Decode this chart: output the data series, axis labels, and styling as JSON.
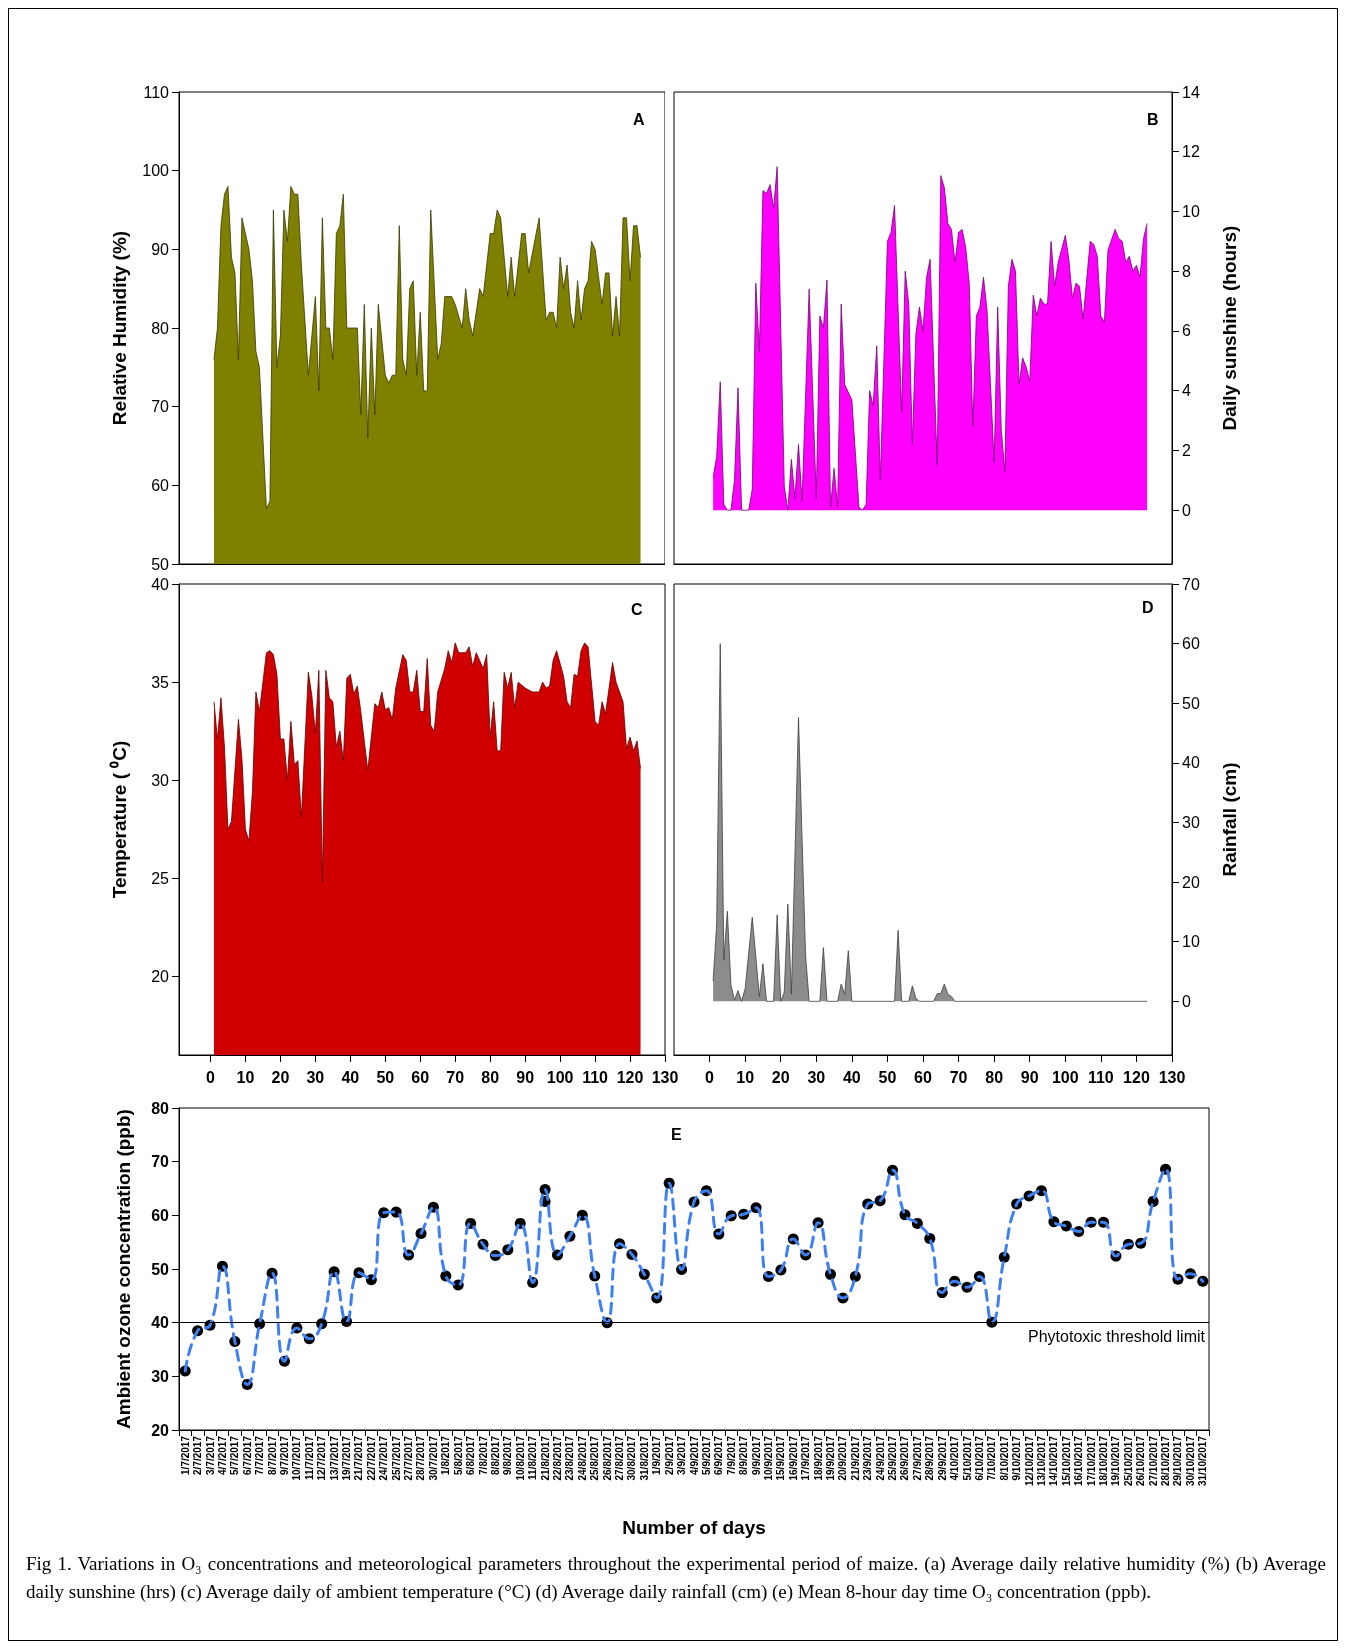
{
  "chart_data": [
    {
      "type": "area",
      "title": "A",
      "ylabel": "Relative Humidity (%)",
      "xlim": [
        -9,
        130
      ],
      "xticks": [
        0,
        10,
        20,
        30,
        40,
        50,
        60,
        70,
        80,
        90,
        100,
        110,
        120,
        130
      ],
      "ylim": [
        50,
        110
      ],
      "yticks": [
        50,
        60,
        70,
        80,
        90,
        100,
        110
      ],
      "tick_labels": "y",
      "x": [
        1,
        2,
        3,
        4,
        5,
        6,
        7,
        8,
        9,
        11,
        12,
        13,
        14,
        16,
        17,
        18,
        19,
        20,
        21,
        22,
        23,
        24,
        25,
        26,
        28,
        30,
        31,
        32,
        33,
        34,
        35,
        36,
        37,
        38,
        39,
        42,
        43,
        44,
        45,
        46,
        47,
        48,
        50,
        51,
        52,
        53,
        54,
        55,
        56,
        57,
        58,
        59,
        60,
        61,
        62,
        63,
        65,
        66,
        67,
        69,
        70,
        72,
        73,
        74,
        75,
        77,
        78,
        80,
        81,
        82,
        83,
        85,
        86,
        87,
        89,
        90,
        91,
        94,
        96,
        97,
        98,
        99,
        100,
        101,
        102,
        103,
        104,
        105,
        106,
        107,
        108,
        109,
        110,
        112,
        113,
        114,
        115,
        116,
        117,
        118,
        119,
        120,
        121,
        122,
        123
      ],
      "series": [
        {
          "color": "#7f7f00",
          "values": [
            76,
            80,
            93,
            97,
            98,
            89,
            87,
            76,
            94,
            90,
            86,
            77,
            75,
            57,
            58,
            95,
            75,
            79,
            95,
            91,
            98,
            97,
            97,
            88,
            74,
            84,
            72,
            94,
            80,
            80,
            76,
            92,
            93,
            97,
            80,
            80,
            69,
            83,
            66,
            80,
            69,
            83,
            74,
            73,
            74,
            74,
            93,
            76,
            74,
            85,
            86,
            74,
            82,
            72,
            72,
            95,
            76,
            78,
            84,
            84,
            83,
            80,
            85,
            81,
            79,
            85,
            84,
            92,
            92,
            95,
            94,
            84,
            89,
            84,
            92,
            92,
            87,
            94,
            81,
            82,
            82,
            80,
            89,
            85,
            88,
            82,
            80,
            86,
            81,
            85,
            86,
            91,
            90,
            83,
            87,
            87,
            79,
            84,
            79,
            94,
            94,
            86,
            93,
            93,
            89
          ]
        }
      ]
    },
    {
      "type": "area",
      "title": "B",
      "y2label": "Daily sunshine (hours)",
      "xlim": [
        -10,
        130
      ],
      "xticks": [
        0,
        10,
        20,
        30,
        40,
        50,
        60,
        70,
        80,
        90,
        100,
        110,
        120,
        130
      ],
      "y2lim": [
        -1.8,
        14
      ],
      "y2ticks": [
        0,
        2,
        4,
        6,
        8,
        10,
        12,
        14
      ],
      "tick_labels": "y",
      "x": [
        1,
        2,
        3,
        4,
        5,
        6,
        7,
        8,
        9,
        11,
        12,
        13,
        14,
        15,
        16,
        17,
        18,
        19,
        21,
        22,
        23,
        24,
        25,
        26,
        28,
        30,
        31,
        32,
        33,
        34,
        35,
        36,
        37,
        38,
        40,
        42,
        43,
        44,
        45,
        46,
        47,
        48,
        50,
        51,
        52,
        54,
        55,
        56,
        57,
        58,
        59,
        60,
        61,
        62,
        64,
        65,
        66,
        67,
        68,
        69,
        70,
        71,
        72,
        73,
        74,
        75,
        76,
        77,
        78,
        80,
        81,
        82,
        83,
        84,
        85,
        86,
        87,
        88,
        89,
        90,
        91,
        92,
        93,
        94,
        95,
        96,
        97,
        98,
        100,
        101,
        102,
        103,
        104,
        105,
        107,
        108,
        109,
        110,
        111,
        112,
        114,
        115,
        116,
        117,
        118,
        119,
        120,
        121,
        122,
        123
      ],
      "series": [
        {
          "color": "#ff00ff",
          "axis": "y2",
          "values": [
            1.1,
            1.8,
            4.3,
            0.2,
            0,
            0,
            1.0,
            4.1,
            0,
            0,
            0.7,
            7.6,
            5.3,
            10.7,
            10.6,
            10.9,
            10.1,
            11.5,
            0.8,
            0,
            1.7,
            0.4,
            2.2,
            0.3,
            7.4,
            0.4,
            6.5,
            6.1,
            7.7,
            0.1,
            1.4,
            0.1,
            6.9,
            4.2,
            3.7,
            0.1,
            0,
            0.2,
            4.0,
            3.5,
            5.5,
            1.0,
            9.0,
            9.3,
            10.2,
            3.3,
            8.0,
            6.9,
            2.2,
            5.9,
            6.8,
            6.0,
            7.8,
            8.4,
            1.5,
            11.2,
            10.8,
            9.6,
            9.4,
            8.3,
            9.3,
            9.4,
            8.8,
            7.6,
            2.8,
            6.5,
            6.8,
            7.8,
            6.7,
            1.6,
            6.8,
            2.7,
            1.3,
            7.5,
            8.4,
            8.0,
            4.2,
            5.1,
            4.8,
            4.3,
            7.2,
            6.5,
            7.1,
            6.9,
            6.9,
            9.0,
            7.5,
            8.3,
            9.2,
            8.4,
            7.1,
            7.6,
            7.5,
            6.4,
            9.0,
            8.9,
            8.5,
            6.5,
            6.3,
            8.7,
            9.4,
            9.1,
            9.0,
            8.3,
            8.5,
            8.0,
            8.2,
            7.8,
            9.1,
            9.6
          ]
        }
      ]
    },
    {
      "type": "area",
      "title": "C",
      "ylabel": "Temperature ( ⁰C)",
      "xlim": [
        -9,
        130
      ],
      "xticks": [
        0,
        10,
        20,
        30,
        40,
        50,
        60,
        70,
        80,
        90,
        100,
        110,
        120,
        130
      ],
      "ylim": [
        16,
        40
      ],
      "yticks": [
        20,
        25,
        30,
        35,
        40
      ],
      "x": [
        1,
        2,
        3,
        4,
        5,
        6,
        8,
        9,
        10,
        11,
        12,
        13,
        14,
        16,
        17,
        18,
        19,
        20,
        21,
        22,
        23,
        24,
        25,
        26,
        28,
        29,
        30,
        31,
        32,
        33,
        34,
        35,
        36,
        37,
        38,
        39,
        40,
        41,
        42,
        43,
        45,
        47,
        48,
        49,
        50,
        51,
        52,
        53,
        55,
        56,
        57,
        58,
        59,
        60,
        61,
        62,
        63,
        64,
        65,
        67,
        68,
        69,
        70,
        71,
        73,
        74,
        75,
        76,
        78,
        79,
        80,
        81,
        82,
        83,
        84,
        85,
        86,
        87,
        88,
        90,
        92,
        94,
        95,
        96,
        97,
        98,
        99,
        101,
        102,
        103,
        104,
        105,
        106,
        107,
        108,
        110,
        111,
        112,
        113,
        115,
        116,
        118,
        119,
        120,
        121,
        122,
        123
      ],
      "series": [
        {
          "color": "#d00000",
          "values": [
            34.0,
            32.1,
            34.2,
            31.7,
            27.5,
            27.9,
            33.1,
            31.1,
            27.5,
            26.9,
            29.4,
            34.5,
            33.5,
            36.5,
            36.6,
            36.4,
            35.4,
            32.1,
            32.1,
            30.0,
            33.0,
            30.8,
            31.0,
            28.1,
            35.5,
            34.3,
            32.4,
            35.6,
            24.8,
            35.6,
            34.2,
            34.0,
            31.7,
            32.5,
            31.0,
            35.2,
            35.4,
            34.4,
            34.8,
            33.5,
            30.5,
            33.9,
            33.7,
            34.5,
            33.6,
            33.7,
            33.1,
            34.7,
            36.4,
            36.1,
            34.5,
            34.5,
            35.6,
            33.5,
            33.5,
            36.2,
            32.8,
            32.5,
            34.5,
            35.7,
            36.6,
            36.0,
            37.0,
            36.5,
            36.5,
            36.8,
            35.8,
            36.5,
            35.7,
            36.4,
            32.2,
            34.0,
            31.5,
            31.5,
            35.5,
            34.7,
            35.5,
            33.7,
            35.0,
            34.7,
            34.5,
            34.5,
            35.0,
            34.7,
            34.8,
            36.1,
            36.6,
            35.3,
            34.0,
            33.7,
            35.4,
            35.3,
            36.6,
            37.0,
            36.8,
            33.0,
            32.8,
            34.0,
            33.4,
            36.0,
            35.0,
            34.0,
            31.6,
            32.2,
            31.5,
            32.0,
            30.6
          ]
        }
      ]
    },
    {
      "type": "area",
      "title": "D",
      "y2label": "Rainfall (cm)",
      "xlim": [
        -10,
        130
      ],
      "xticks": [
        0,
        10,
        20,
        30,
        40,
        50,
        60,
        70,
        80,
        90,
        100,
        110,
        120,
        130
      ],
      "y2lim": [
        -9,
        70
      ],
      "y2ticks": [
        0,
        10,
        20,
        30,
        40,
        50,
        60,
        70
      ],
      "x": [
        1,
        2,
        3,
        4,
        5,
        6,
        7,
        8,
        9,
        10,
        12,
        14,
        15,
        16,
        18,
        19,
        20,
        21,
        22,
        23,
        25,
        26,
        27,
        28,
        31,
        32,
        33,
        36,
        37,
        38,
        39,
        40,
        52,
        53,
        54,
        56,
        57,
        58,
        59,
        63,
        64,
        65,
        66,
        67,
        68,
        69,
        123
      ],
      "series": [
        {
          "color": "#8c8c8c",
          "axis": "y2",
          "values": [
            3.4,
            13,
            60,
            6.9,
            15.1,
            2.8,
            0.2,
            1.8,
            0,
            2.1,
            14.1,
            0.8,
            6.3,
            0,
            0,
            14.5,
            0,
            1.5,
            16.3,
            1.2,
            47.6,
            27.4,
            7.6,
            0,
            0,
            9.0,
            0,
            0,
            2.9,
            1.2,
            8.5,
            0,
            0,
            11.9,
            0,
            0,
            2.6,
            0.5,
            0,
            0,
            1.3,
            1.3,
            2.9,
            1.2,
            0.8,
            0,
            0
          ]
        }
      ]
    },
    {
      "type": "line",
      "title": "E",
      "xlabel": "Number of days",
      "ylabel": "Ambient ozone concentration (ppb)",
      "ylim": [
        20,
        80
      ],
      "yticks": [
        20,
        30,
        40,
        50,
        60,
        70,
        80
      ],
      "categories": [
        "1/7/2017",
        "2/7/2017",
        "3/7/2017",
        "4/7/2017",
        "5/7/2017",
        "6/7/2017",
        "7/7/2017",
        "8/7/2017",
        "9/7/2017",
        "10/7/2017",
        "11/7/2017",
        "12/7/2017",
        "13/7/2017",
        "19/7/2017",
        "21/7/2017",
        "22/7/2017",
        "24/7/2017",
        "25/7/2017",
        "27/7/2017",
        "28/7/2017",
        "30/7/2017",
        "1/8/2017",
        "5/8/2017",
        "6/8/2017",
        "7/8/2017",
        "8/8/2017",
        "9/8/2017",
        "10/8/2017",
        "11/8/2017",
        "21/8/2017",
        "22/8/2017",
        "23/8/2017",
        "24/8/2017",
        "25/8/2017",
        "26/8/2017",
        "27/8/2017",
        "30/8/2017",
        "31/8/2017",
        "1/9/2017",
        "2/9/2017",
        "3/9/2017",
        "4/9/2017",
        "5/9/2017",
        "6/9/2017",
        "7/9/2017",
        "8/9/2017",
        "9/9/2017",
        "10/9/2017",
        "15/9/2017",
        "16/9/2017",
        "17/9/2017",
        "18/9/2017",
        "19/9/2017",
        "20/9/2017",
        "21/9/2017",
        "23/9/2017",
        "24/9/2017",
        "25/9/2017",
        "26/9/2017",
        "27/9/2017",
        "28/9/2017",
        "29/9/2017",
        "4/10/2017",
        "5/10/2017",
        "6/10/2017",
        "7/10/2017",
        "8/10/2017",
        "9/10/2017",
        "12/10/2017",
        "13/10/2017",
        "14/10/2017",
        "15/10/2017",
        "16/10/2017",
        "17/10/2017",
        "18/10/2017",
        "19/10/2017",
        "25/10/2017",
        "26/10/2017",
        "27/10/2017",
        "28/10/2017",
        "29/10/2017",
        "30/10/2017",
        "31/10/2017"
      ],
      "ref_lines": [
        {
          "axis": "y",
          "value": 40,
          "label": "Phytotoxic threshold limit",
          "color": "#000000"
        }
      ],
      "series": [
        {
          "color": "#3f80f0",
          "line_style": "dashed",
          "marker": "none",
          "values": [
            31,
            38.5,
            39.5,
            50.5,
            36.5,
            28.5,
            39.8,
            49.2,
            32.8,
            39,
            37,
            39.8,
            49.5,
            40.2,
            49.3,
            48,
            60.5,
            60.6,
            52.6,
            56.6,
            61.5,
            48.7,
            47,
            58.5,
            54.6,
            52.5,
            53.6,
            58.5,
            47.5,
            64.8,
            52.6,
            56.1,
            60,
            48.7,
            40,
            54.7,
            52.7,
            49,
            44.6,
            66,
            49.9,
            62.5,
            64.6,
            56.5,
            59.9,
            60.2,
            61.4,
            48.6,
            49.8,
            55.6,
            52.6,
            58.6,
            49,
            44.6,
            48.6,
            62.1,
            62.7,
            68.4,
            60.1,
            58.5,
            55.7,
            45.6,
            47.7,
            46.6,
            48.6,
            40.1,
            52.2,
            62.1,
            63.6,
            64.6,
            58.8,
            58,
            57,
            58.7,
            58.7,
            52.4,
            54.6,
            54.8,
            62.6,
            68.6,
            48.1,
            49.1,
            47.7
          ]
        },
        {
          "type": "scatter",
          "color": "#000000",
          "marker": "circle",
          "x": [
            "1/7/2017",
            "2/7/2017",
            "3/7/2017",
            "4/7/2017",
            "5/7/2017",
            "6/7/2017",
            "7/7/2017",
            "8/7/2017",
            "9/7/2017",
            "10/7/2017",
            "11/7/2017",
            "12/7/2017",
            "13/7/2017",
            "19/7/2017",
            "21/7/2017",
            "22/7/2017",
            "24/7/2017",
            "25/7/2017",
            "27/7/2017",
            "28/7/2017",
            "30/7/2017",
            "1/8/2017",
            "5/8/2017",
            "6/8/2017",
            "7/8/2017",
            "8/8/2017",
            "9/8/2017",
            "10/8/2017",
            "11/8/2017",
            "21/8/2017",
            "22/8/2017",
            "23/8/2017",
            "24/8/2017",
            "25/8/2017",
            "26/8/2017",
            "27/8/2017",
            "30/8/2017",
            "31/8/2017",
            "1/9/2017",
            "2/9/2017",
            "3/9/2017",
            "4/9/2017",
            "5/9/2017",
            "6/9/2017",
            "7/9/2017",
            "8/9/2017",
            "9/9/2017",
            "10/9/2017",
            "15/9/2017",
            "16/9/2017",
            "17/9/2017",
            "18/9/2017",
            "19/9/2017",
            "20/9/2017",
            "21/9/2017",
            "23/9/2017",
            "24/9/2017",
            "25/9/2017",
            "26/9/2017",
            "27/9/2017",
            "28/9/2017",
            "29/9/2017",
            "4/10/2017",
            "5/10/2017",
            "6/10/2017",
            "7/10/2017",
            "8/10/2017",
            "9/10/2017",
            "12/10/2017",
            "13/10/2017",
            "14/10/2017",
            "15/10/2017",
            "16/10/2017",
            "17/10/2017",
            "18/10/2017",
            "19/10/2017",
            "25/10/2017",
            "26/10/2017",
            "27/10/2017",
            "28/10/2017",
            "29/10/2017",
            "30/10/2017",
            "31/10/2017",
            "21/8/2017"
          ],
          "values": [
            31,
            38.5,
            39.5,
            50.5,
            36.5,
            28.5,
            39.8,
            49.2,
            32.8,
            39,
            37,
            39.8,
            49.5,
            40.2,
            49.3,
            48,
            60.5,
            60.6,
            52.6,
            56.6,
            61.5,
            48.7,
            47,
            58.5,
            54.6,
            52.5,
            53.6,
            58.5,
            47.5,
            64.8,
            52.6,
            56.1,
            60,
            48.7,
            40,
            54.7,
            52.7,
            49,
            44.6,
            66,
            49.9,
            62.5,
            64.6,
            56.5,
            59.9,
            60.2,
            61.4,
            48.6,
            49.8,
            55.6,
            52.6,
            58.6,
            49,
            44.6,
            48.6,
            62.1,
            62.7,
            68.4,
            60.1,
            58.5,
            55.7,
            45.6,
            47.7,
            46.6,
            48.6,
            40.1,
            52.2,
            62.1,
            63.6,
            64.6,
            58.8,
            58,
            57,
            58.7,
            58.7,
            52.4,
            54.6,
            54.8,
            62.6,
            68.6,
            48.1,
            49.1,
            47.7,
            62.6
          ]
        }
      ],
      "annotations": [
        "Fig 1. Variations in O₃ concentrations and meteorological parameters throughout the experimental period of maize. (a) Average daily relative humidity (%) (b) Average daily sunshine (hrs) (c) Average daily of ambient temperature (°C) (d) Average daily rainfall (cm) (e) Mean 8-hour day time O₃ concentration (ppb)."
      ]
    }
  ]
}
